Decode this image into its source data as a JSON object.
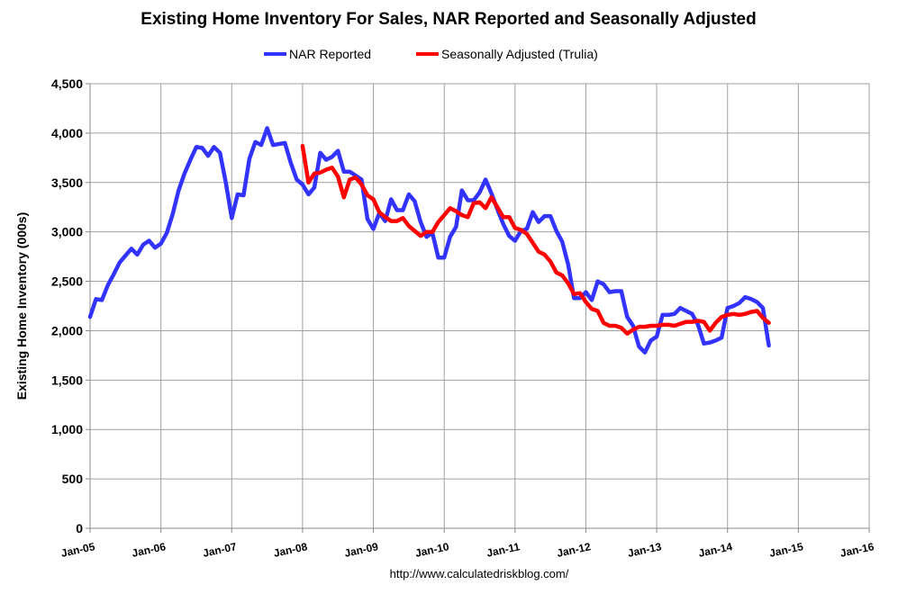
{
  "chart_data": {
    "type": "line",
    "title": "Existing Home Inventory For Sales, NAR Reported and Seasonally Adjusted",
    "ylabel": "Existing Home Inventory (000s)",
    "xlabel": "",
    "source": "http://www.calculatedriskblog.com/",
    "ylim": [
      0,
      4500
    ],
    "yticks": [
      0,
      500,
      1000,
      1500,
      2000,
      2500,
      3000,
      3500,
      4000,
      4500
    ],
    "ytick_labels": [
      "0",
      "500",
      "1,000",
      "1,500",
      "2,000",
      "2,500",
      "3,000",
      "3,500",
      "4,000",
      "4,500"
    ],
    "xlim": [
      2005.0,
      2016.0
    ],
    "xticks": [
      2005,
      2006,
      2007,
      2008,
      2009,
      2010,
      2011,
      2012,
      2013,
      2014,
      2015,
      2016
    ],
    "xtick_labels": [
      "Jan-05",
      "Jan-06",
      "Jan-07",
      "Jan-08",
      "Jan-09",
      "Jan-10",
      "Jan-11",
      "Jan-12",
      "Jan-13",
      "Jan-14",
      "Jan-15",
      "Jan-16"
    ],
    "grid": true,
    "legend_position": "top-center",
    "series": [
      {
        "name": "NAR Reported",
        "color": "#3333ff",
        "start": 2005.0,
        "values": [
          2140,
          2320,
          2310,
          2460,
          2570,
          2690,
          2760,
          2830,
          2770,
          2870,
          2910,
          2840,
          2880,
          2990,
          3180,
          3420,
          3590,
          3730,
          3860,
          3850,
          3770,
          3860,
          3800,
          3500,
          3140,
          3380,
          3370,
          3740,
          3910,
          3880,
          4050,
          3880,
          3890,
          3900,
          3700,
          3530,
          3480,
          3380,
          3450,
          3800,
          3730,
          3760,
          3820,
          3610,
          3610,
          3570,
          3530,
          3130,
          3030,
          3190,
          3110,
          3330,
          3220,
          3220,
          3380,
          3310,
          3100,
          2950,
          2990,
          2740,
          2740,
          2950,
          3050,
          3420,
          3320,
          3320,
          3400,
          3530,
          3390,
          3230,
          3080,
          2960,
          2910,
          3010,
          3030,
          3200,
          3100,
          3160,
          3160,
          3010,
          2900,
          2670,
          2330,
          2330,
          2390,
          2310,
          2500,
          2470,
          2390,
          2400,
          2400,
          2140,
          2050,
          1840,
          1780,
          1900,
          1940,
          2160,
          2160,
          2170,
          2230,
          2200,
          2170,
          2060,
          1870,
          1880,
          1900,
          1930,
          2230,
          2250,
          2280,
          2340,
          2320,
          2290,
          2230,
          1850
        ]
      },
      {
        "name": "Seasonally Adjusted (Trulia)",
        "color": "#ff0000",
        "start": 2008.0,
        "values": [
          3870,
          3500,
          3590,
          3600,
          3630,
          3650,
          3560,
          3350,
          3530,
          3550,
          3480,
          3370,
          3330,
          3200,
          3150,
          3110,
          3110,
          3140,
          3060,
          3010,
          2960,
          3000,
          3000,
          3100,
          3170,
          3240,
          3210,
          3170,
          3150,
          3290,
          3300,
          3240,
          3350,
          3250,
          3150,
          3150,
          3040,
          3020,
          2980,
          2890,
          2800,
          2770,
          2700,
          2590,
          2560,
          2480,
          2370,
          2380,
          2290,
          2220,
          2200,
          2080,
          2050,
          2050,
          2030,
          1970,
          2010,
          2040,
          2040,
          2050,
          2050,
          2060,
          2060,
          2050,
          2070,
          2090,
          2090,
          2100,
          2090,
          2000,
          2080,
          2140,
          2160,
          2170,
          2160,
          2170,
          2190,
          2200,
          2130,
          2080
        ]
      }
    ]
  }
}
